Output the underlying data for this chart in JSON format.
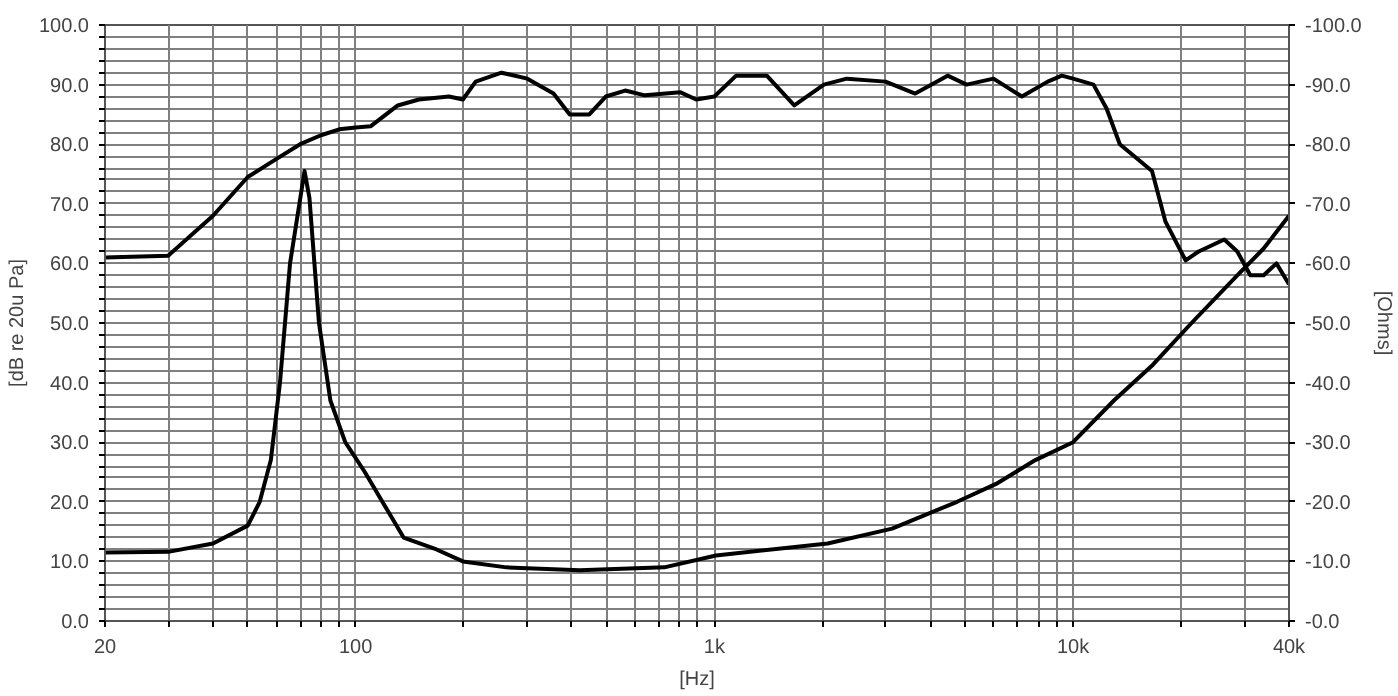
{
  "chart_data": {
    "type": "line",
    "xlabel": "[Hz]",
    "ylabel": "[dB re 20u Pa]",
    "y2label": "[Ohms]",
    "log": "x",
    "grid": true,
    "marker": "none",
    "line_style": "solid",
    "xlim": [
      20,
      40000
    ],
    "xticks": [
      20,
      {
        "value": 30,
        "label": null
      },
      {
        "value": 40,
        "label": null
      },
      {
        "value": 50,
        "label": null
      },
      {
        "value": 60,
        "label": null
      },
      {
        "value": 70,
        "label": null
      },
      {
        "value": 80,
        "label": null
      },
      {
        "value": 90,
        "label": null
      },
      100,
      {
        "value": 200,
        "label": null
      },
      {
        "value": 300,
        "label": null
      },
      {
        "value": 400,
        "label": null
      },
      {
        "value": 500,
        "label": null
      },
      {
        "value": 600,
        "label": null
      },
      {
        "value": 700,
        "label": null
      },
      {
        "value": 800,
        "label": null
      },
      {
        "value": 900,
        "label": null
      },
      {
        "value": 1000,
        "label": "1k"
      },
      {
        "value": 2000,
        "label": null
      },
      {
        "value": 3000,
        "label": null
      },
      {
        "value": 4000,
        "label": null
      },
      {
        "value": 5000,
        "label": null
      },
      {
        "value": 6000,
        "label": null
      },
      {
        "value": 7000,
        "label": null
      },
      {
        "value": 8000,
        "label": null
      },
      {
        "value": 9000,
        "label": null
      },
      {
        "value": 10000,
        "label": "10k"
      },
      {
        "value": 20000,
        "label": null
      },
      {
        "value": 30000,
        "label": null
      },
      {
        "value": 40000,
        "label": "40k"
      }
    ],
    "ylim": [
      0,
      100
    ],
    "yticks": [
      {
        "value": 0,
        "label": "0.0"
      },
      {
        "value": 2,
        "label": null
      },
      {
        "value": 4,
        "label": null
      },
      {
        "value": 6,
        "label": null
      },
      {
        "value": 8,
        "label": null
      },
      {
        "value": 10,
        "label": "10.0"
      },
      {
        "value": 12,
        "label": null
      },
      {
        "value": 14,
        "label": null
      },
      {
        "value": 16,
        "label": null
      },
      {
        "value": 18,
        "label": null
      },
      {
        "value": 20,
        "label": "20.0"
      },
      {
        "value": 22,
        "label": null
      },
      {
        "value": 24,
        "label": null
      },
      {
        "value": 26,
        "label": null
      },
      {
        "value": 28,
        "label": null
      },
      {
        "value": 30,
        "label": "30.0"
      },
      {
        "value": 32,
        "label": null
      },
      {
        "value": 34,
        "label": null
      },
      {
        "value": 36,
        "label": null
      },
      {
        "value": 38,
        "label": null
      },
      {
        "value": 40,
        "label": "40.0"
      },
      {
        "value": 42,
        "label": null
      },
      {
        "value": 44,
        "label": null
      },
      {
        "value": 46,
        "label": null
      },
      {
        "value": 48,
        "label": null
      },
      {
        "value": 50,
        "label": "50.0"
      },
      {
        "value": 52,
        "label": null
      },
      {
        "value": 54,
        "label": null
      },
      {
        "value": 56,
        "label": null
      },
      {
        "value": 58,
        "label": null
      },
      {
        "value": 60,
        "label": "60.0"
      },
      {
        "value": 62,
        "label": null
      },
      {
        "value": 64,
        "label": null
      },
      {
        "value": 66,
        "label": null
      },
      {
        "value": 68,
        "label": null
      },
      {
        "value": 70,
        "label": "70.0"
      },
      {
        "value": 72,
        "label": null
      },
      {
        "value": 74,
        "label": null
      },
      {
        "value": 76,
        "label": null
      },
      {
        "value": 78,
        "label": null
      },
      {
        "value": 80,
        "label": "80.0"
      },
      {
        "value": 82,
        "label": null
      },
      {
        "value": 84,
        "label": null
      },
      {
        "value": 86,
        "label": null
      },
      {
        "value": 88,
        "label": null
      },
      {
        "value": 90,
        "label": "90.0"
      },
      {
        "value": 92,
        "label": null
      },
      {
        "value": 94,
        "label": null
      },
      {
        "value": 96,
        "label": null
      },
      {
        "value": 98,
        "label": null
      },
      {
        "value": 100,
        "label": "100.0"
      }
    ],
    "y2lim": [
      0,
      -100
    ],
    "y2ticks": [
      {
        "value": 0,
        "label": "-0.0"
      },
      {
        "value": -10,
        "label": "-10.0"
      },
      {
        "value": -20,
        "label": "-20.0"
      },
      {
        "value": -30,
        "label": "-30.0"
      },
      {
        "value": -40,
        "label": "-40.0"
      },
      {
        "value": -50,
        "label": "-50.0"
      },
      {
        "value": -60,
        "label": "-60.0"
      },
      {
        "value": -70,
        "label": "-70.0"
      },
      {
        "value": -80,
        "label": "-80.0"
      },
      {
        "value": -90,
        "label": "-90.0"
      },
      {
        "value": -100,
        "label": "-100.0"
      }
    ],
    "series": [
      {
        "color": "#000000",
        "x": [
          20,
          30,
          40,
          50,
          60,
          70,
          80,
          90,
          100,
          110,
          131,
          150,
          182,
          199,
          216,
          255,
          301,
          356,
          395,
          448,
          498,
          564,
          640,
          805,
          890,
          1000,
          1150,
          1400,
          1670,
          2020,
          2340,
          3000,
          3630,
          4470,
          5050,
          6000,
          7200,
          8500,
          9300,
          10000,
          11400,
          12400,
          13500,
          16600,
          18100,
          20600,
          22400,
          26400,
          28700,
          31200,
          34000,
          36900,
          40000
        ],
        "values": [
          61,
          61.3,
          68,
          74.5,
          77.5,
          80,
          81.5,
          82.5,
          82.8,
          83,
          86.5,
          87.5,
          88,
          87.5,
          90.5,
          92,
          91,
          88.5,
          85,
          85,
          88,
          89,
          88.2,
          88.7,
          87.5,
          88,
          91.5,
          91.5,
          86.5,
          90,
          91,
          90.5,
          88.5,
          91.5,
          90,
          91,
          88,
          90.5,
          91.5,
          91,
          90,
          86,
          80,
          75.5,
          67,
          60.5,
          62,
          64,
          62,
          58,
          58,
          60,
          56.5
        ]
      },
      {
        "color": "#000000",
        "axis": "y2",
        "x": [
          20,
          30,
          40,
          50,
          54,
          58,
          61.5,
          65.6,
          72,
          74.3,
          79,
          85,
          93.5,
          106,
          136,
          168,
          199,
          263,
          421,
          725,
          1010,
          2070,
          3130,
          4750,
          6100,
          7850,
          10000,
          13000,
          16700,
          21400,
          28700,
          34000,
          40000
        ],
        "values": [
          -11.5,
          -11.6,
          -13,
          -16,
          -20,
          -27,
          -40,
          -60,
          -75.5,
          -71,
          -50,
          -37,
          -30,
          -25,
          -14,
          -12,
          -10,
          -9,
          -8.5,
          -9,
          -11,
          -13,
          -15.5,
          -20,
          -23,
          -27,
          -30,
          -37,
          -43,
          -50,
          -58,
          -62.5,
          -68
        ]
      }
    ]
  }
}
